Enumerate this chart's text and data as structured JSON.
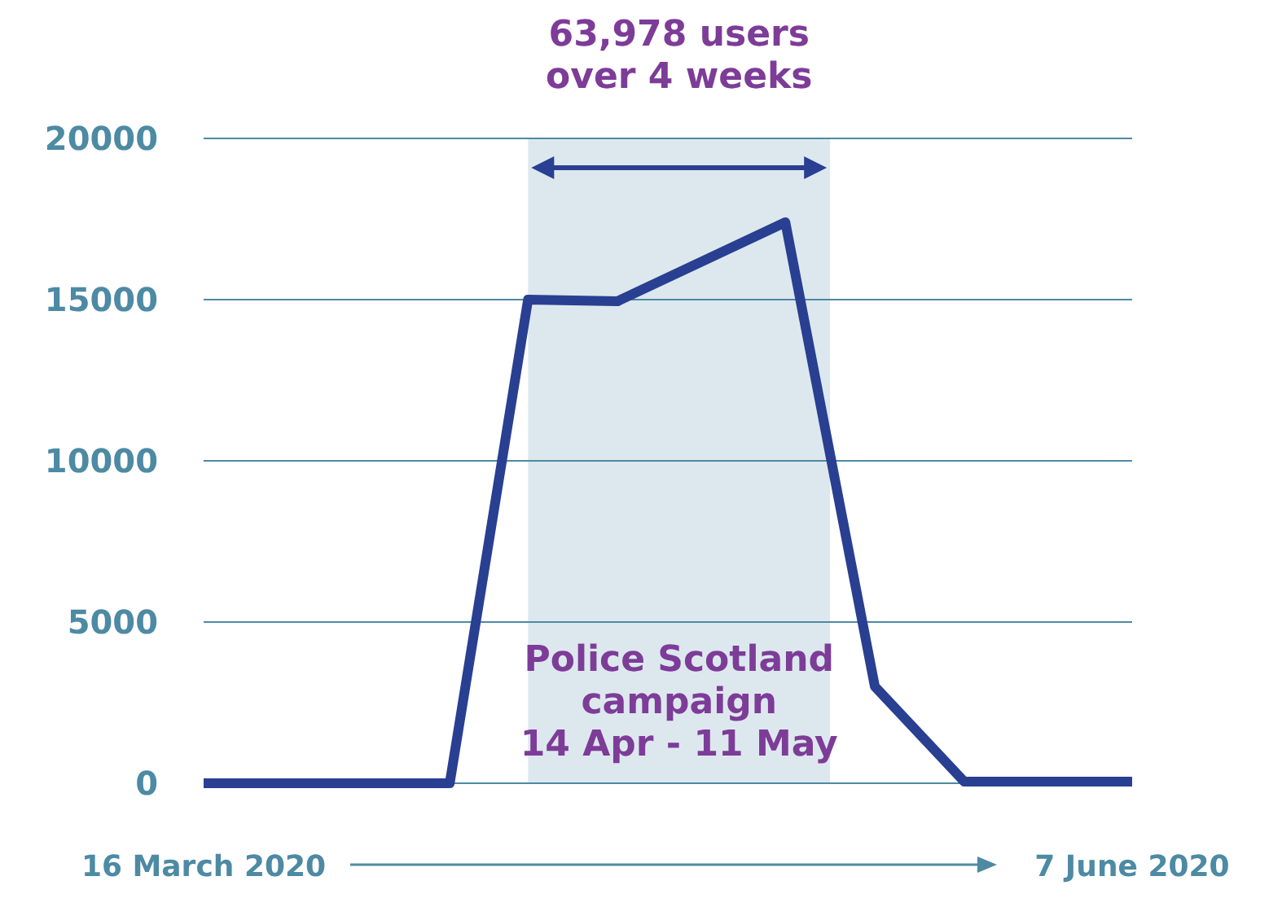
{
  "chart_data": {
    "type": "line",
    "x": [
      "2020-03-16",
      "2020-04-07",
      "2020-04-14",
      "2020-04-22",
      "2020-05-07",
      "2020-05-15",
      "2020-05-23",
      "2020-06-07"
    ],
    "series": [
      {
        "color": "#293f91",
        "values": [
          0,
          0,
          15000,
          14950,
          17400,
          3000,
          50,
          50
        ]
      }
    ],
    "xlim": [
      "2020-03-16",
      "2020-06-07"
    ],
    "xticks": [
      {
        "value": "2020-03-16",
        "label": "16 March 2020"
      },
      {
        "value": "2020-06-07",
        "label": "7 June 2020"
      }
    ],
    "ylim": [
      0,
      20000
    ],
    "yticks": [
      0,
      5000,
      10000,
      15000,
      20000
    ],
    "grid": "y",
    "marker": "none",
    "line_style": "solid",
    "bands": [
      {
        "axis": "x",
        "from": "2020-04-14",
        "to": "2020-05-11",
        "label": "Police Scotland\ncampaign\n14 Apr - 11 May",
        "color": "#dde8ee"
      }
    ],
    "annotations": [
      "63,978 users\nover 4 weeks"
    ]
  }
}
